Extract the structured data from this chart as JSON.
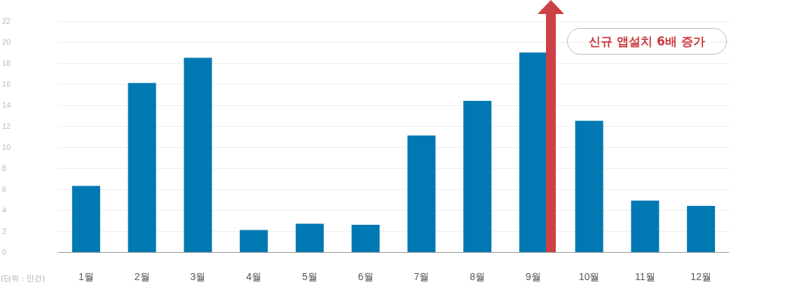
{
  "chart_data": {
    "type": "bar",
    "categories": [
      "1월",
      "2월",
      "3월",
      "4월",
      "5월",
      "6월",
      "7월",
      "8월",
      "9월",
      "10월",
      "11월",
      "12월"
    ],
    "values": [
      6.3,
      16.1,
      18.5,
      2.1,
      2.7,
      2.6,
      11.1,
      14.4,
      19,
      12.5,
      4.9,
      4.4
    ],
    "color": "#0079b2",
    "ylim": [
      0,
      22
    ],
    "yticks": [
      0,
      2,
      4,
      6,
      8,
      10,
      12,
      14,
      16,
      18,
      20,
      22
    ],
    "grid": "y",
    "annotations": [
      "신규 앱설치 6배 증가",
      "(단위 : 만건)"
    ]
  }
}
